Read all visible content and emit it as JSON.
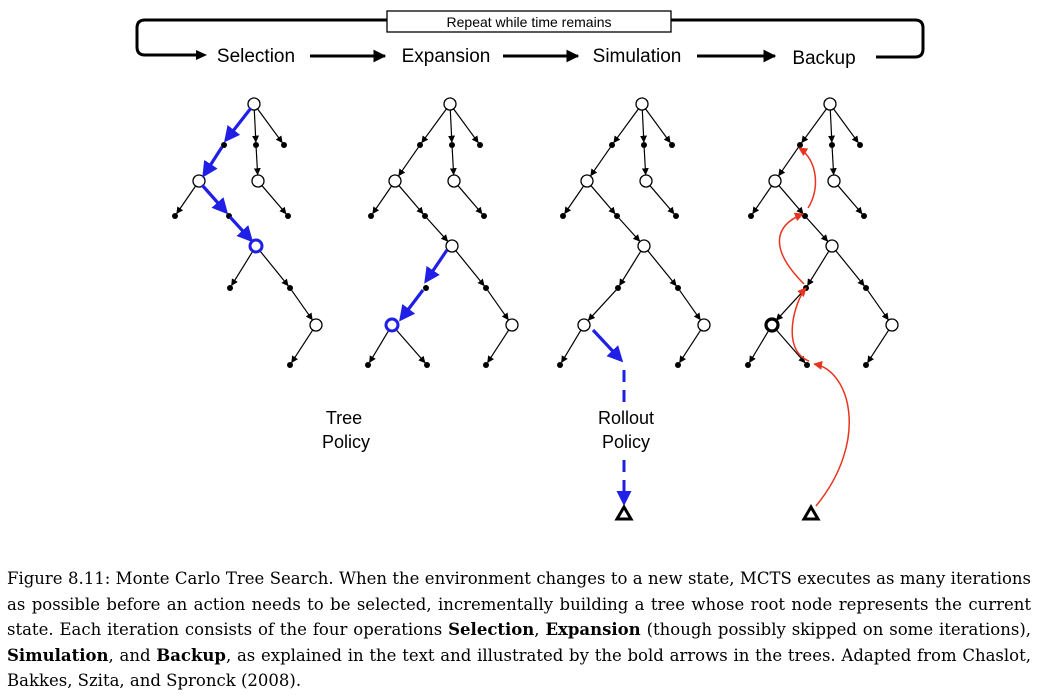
{
  "loop": {
    "label": "Repeat while time remains"
  },
  "phases": [
    "Selection",
    "Expansion",
    "Simulation",
    "Backup"
  ],
  "labels": {
    "tree_policy": [
      "Tree",
      "Policy"
    ],
    "rollout_policy": [
      "Rollout",
      "Policy"
    ]
  },
  "colors": {
    "highlight": "#1f1fe6",
    "backup": "#e8341f",
    "stroke": "#000000"
  },
  "caption": {
    "figure_label": "Figure 8.11:",
    "part1": "Monte Carlo Tree Search. When the environment changes to a new state, MCTS executes as many iterations as possible before an action needs to be selected, incrementally building a tree whose root node represents the current state. Each iteration consists of the four operations",
    "selection": "Selection",
    "sep1": ",",
    "expansion": "Expansion",
    "part2": "(though possibly skipped on some iterations),",
    "simulation": "Simulation",
    "and": ", and",
    "backup": "Backup",
    "part3": ", as explained in the text and illustrated by the bold arrows in the trees. Adapted from Chaslot, Bakkes, Szita, and Spronck (2008)."
  }
}
